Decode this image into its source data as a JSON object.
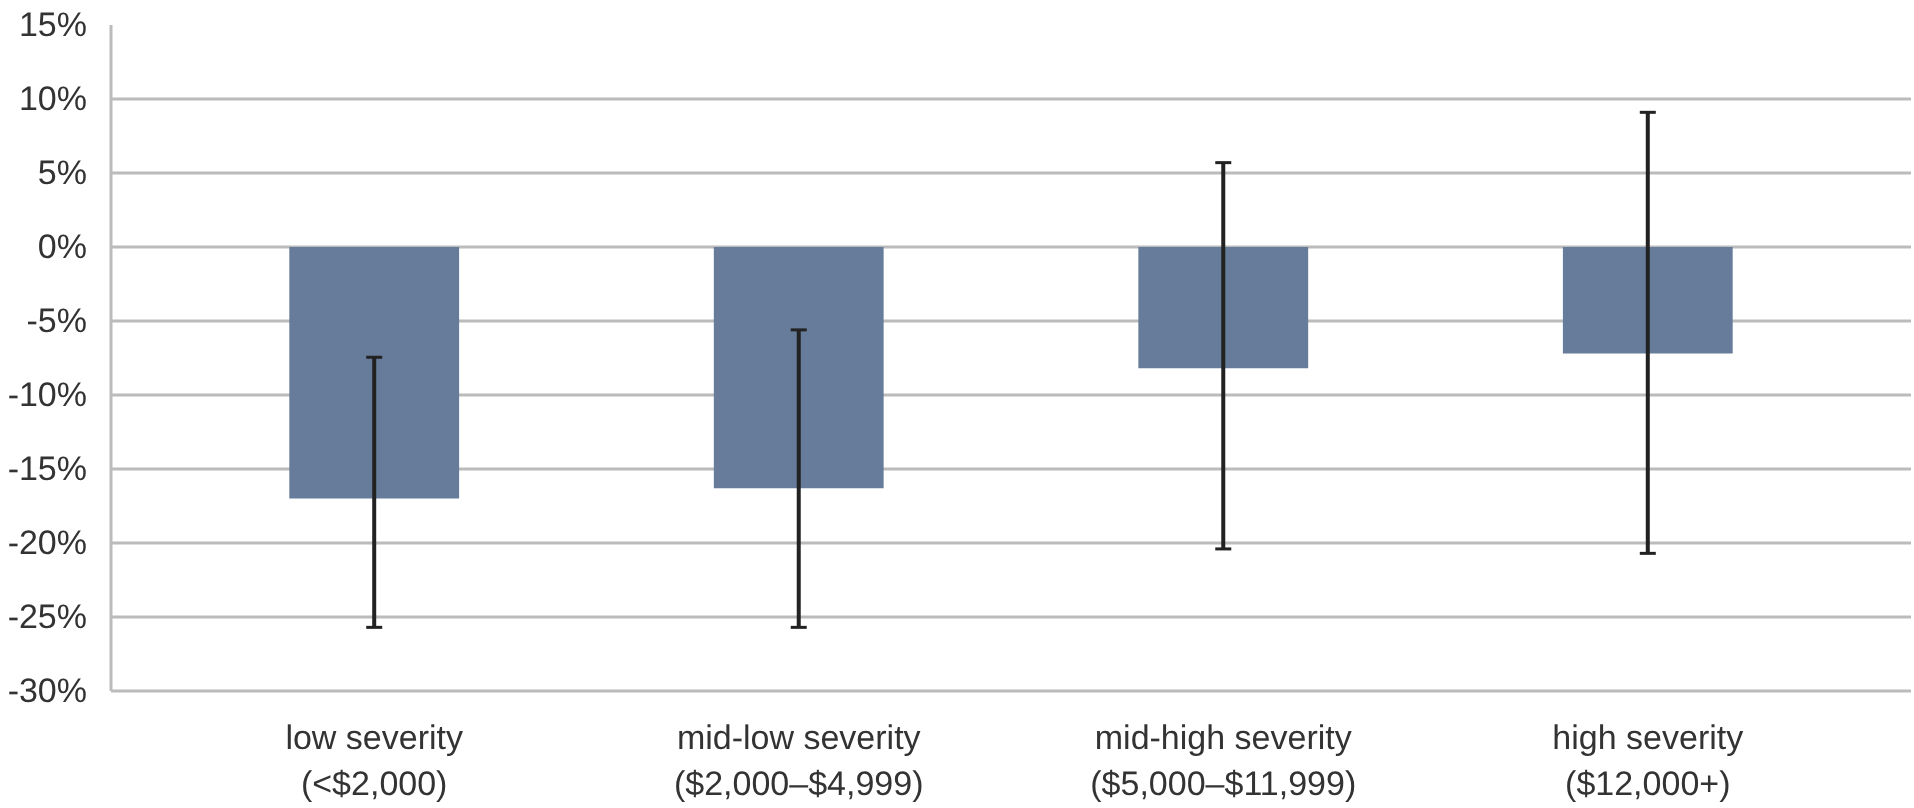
{
  "chart_data": {
    "type": "bar",
    "categories": [
      "low severity\n(<$2,000)",
      "mid-low severity\n($2,000–$4,999)",
      "mid-high severity\n($5,000–$11,999)",
      "high severity\n($12,000+)"
    ],
    "values": [
      -17.0,
      -16.3,
      -8.2,
      -7.2
    ],
    "errors": [
      [
        -25.7,
        -7.45
      ],
      [
        -25.7,
        -5.6
      ],
      [
        -20.4,
        5.7
      ],
      [
        -20.7,
        9.1
      ]
    ],
    "color": "#667c9a",
    "ylim": [
      -30,
      15
    ],
    "yticks": [
      {
        "value": -30,
        "label": "-30%"
      },
      {
        "value": -25,
        "label": "-25%"
      },
      {
        "value": -20,
        "label": "-20%"
      },
      {
        "value": -15,
        "label": "-15%"
      },
      {
        "value": -10,
        "label": "-10%"
      },
      {
        "value": -5,
        "label": "-5%"
      },
      {
        "value": 0,
        "label": "0%"
      },
      {
        "value": 5,
        "label": "5%"
      },
      {
        "value": 10,
        "label": "10%"
      },
      {
        "value": 15,
        "label": "15%"
      }
    ],
    "grid": "y"
  }
}
